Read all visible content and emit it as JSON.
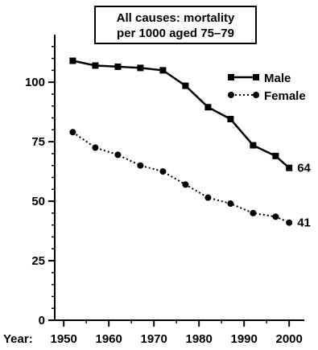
{
  "chart_data": {
    "type": "line",
    "title_lines": [
      "All causes: mortality",
      "per 1000 aged 75–79"
    ],
    "xlabel_prefix": "Year:",
    "x_ticks": [
      1950,
      1960,
      1970,
      1980,
      1990,
      2000
    ],
    "y_ticks": [
      0,
      25,
      50,
      75,
      100
    ],
    "xlim": [
      1948,
      2003
    ],
    "ylim": [
      0,
      120
    ],
    "legend_placement": "top-right",
    "x": [
      1952,
      1957,
      1962,
      1967,
      1972,
      1977,
      1982,
      1987,
      1992,
      1997,
      2000
    ],
    "series": [
      {
        "name": "Male",
        "style": "solid",
        "marker": "square",
        "values": [
          109,
          107,
          106.5,
          106,
          105,
          98.5,
          89.5,
          84.5,
          73.5,
          69,
          64
        ],
        "end_label": "64"
      },
      {
        "name": "Female",
        "style": "dotted",
        "marker": "circle",
        "values": [
          79,
          72.5,
          69.5,
          65,
          62.5,
          57,
          51.5,
          49,
          45,
          43.5,
          41
        ],
        "end_label": "41"
      }
    ],
    "grid": false
  }
}
